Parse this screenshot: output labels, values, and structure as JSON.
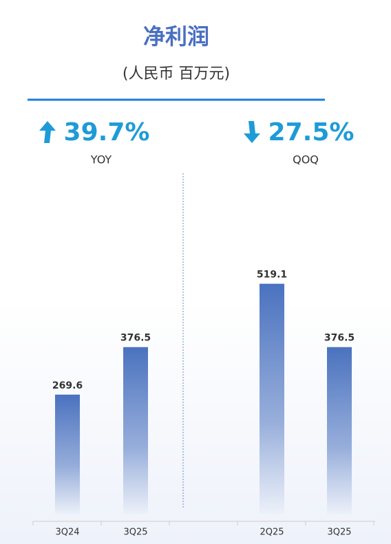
{
  "header": {
    "title": "净利润",
    "subtitle": "(人民币 百万元)"
  },
  "chart_data": [
    {
      "type": "bar",
      "headline": "39.7%",
      "headline_label": "YOY",
      "direction": "up",
      "categories": [
        "3Q24",
        "3Q25"
      ],
      "values": [
        269.6,
        376.5
      ],
      "color": "#4a72bf",
      "ylim": [
        0,
        520
      ]
    },
    {
      "type": "bar",
      "headline": "27.5%",
      "headline_label": "QOQ",
      "direction": "down",
      "categories": [
        "2Q25",
        "3Q25"
      ],
      "values": [
        519.1,
        376.5
      ],
      "color": "#4a72bf",
      "ylim": [
        0,
        520
      ]
    }
  ]
}
